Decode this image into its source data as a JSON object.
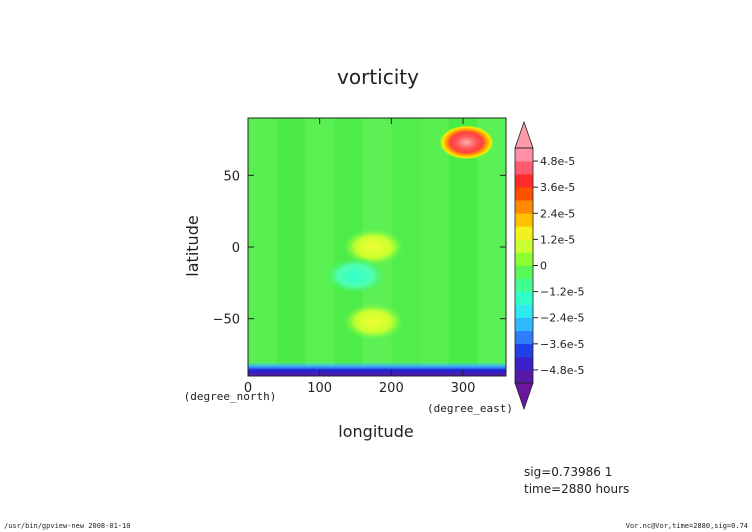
{
  "chart_data": {
    "type": "heatmap",
    "title": "vorticity",
    "xlabel": "longitude",
    "ylabel": "latitude",
    "x_units": "(degree_east)",
    "y_units": "(degree_north)",
    "xlim": [
      0,
      360
    ],
    "ylim": [
      -90,
      90
    ],
    "x_ticks": [
      0,
      100,
      200,
      300
    ],
    "y_ticks": [
      50,
      0,
      -50
    ],
    "colorbar": {
      "min": -5.4e-05,
      "max": 5.4e-05,
      "tick_labels": [
        "4.8e-5",
        "3.6e-5",
        "2.4e-5",
        "1.2e-5",
        "0",
        "−1.2e-5",
        "−2.4e-5",
        "−3.6e-5",
        "−4.8e-5"
      ],
      "tick_values": [
        4.8e-05,
        3.6e-05,
        2.4e-05,
        1.2e-05,
        0,
        -1.2e-05,
        -2.4e-05,
        -3.6e-05,
        -4.8e-05
      ],
      "extend": "both"
    },
    "features": [
      {
        "lon": 305,
        "lat": 73,
        "value": 5.5e-05
      },
      {
        "lon": 175,
        "lat": -52,
        "value": 1.8e-05
      },
      {
        "lon": 175,
        "lat": 0,
        "value": 1e-05
      },
      {
        "lon": 150,
        "lat": -20,
        "value": -1e-05
      },
      {
        "lon": 180,
        "lat": -85,
        "value": -5e-05
      },
      {
        "lon": 320,
        "lat": -85,
        "value": -5e-05
      }
    ]
  },
  "info": {
    "sig": "sig=0.73986  1",
    "time": "time=2880 hours"
  },
  "footer": {
    "left": "/usr/bin/gpview-new  2008-01-10",
    "right": "Vor.nc@Vor,time=2880,sig=0.74"
  }
}
